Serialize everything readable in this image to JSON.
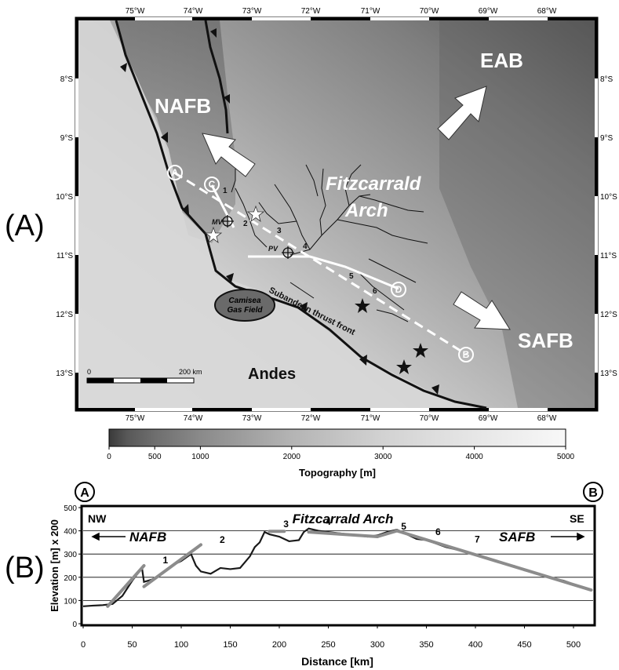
{
  "panel_labels": {
    "a": "(A)",
    "b": "(B)"
  },
  "map": {
    "lon_ticks_top": [
      "75°W",
      "74°W",
      "73°W",
      "72°W",
      "71°W",
      "70°W",
      "69°W",
      "68°W"
    ],
    "lon_ticks_bottom": [
      "75°W",
      "74°W",
      "73°W",
      "72°W",
      "71°W",
      "70°W",
      "69°W",
      "68°W"
    ],
    "lat_ticks_left": [
      "8°S",
      "9°S",
      "10°S",
      "11°S",
      "12°S",
      "13°S"
    ],
    "lat_ticks_right": [
      "8°S",
      "9°S",
      "10°S",
      "11°S",
      "12°S",
      "13°S"
    ],
    "regions": {
      "nafb": "NAFB",
      "eab": "EAB",
      "safb": "SAFB",
      "andes": "Andes",
      "arch_line1": "Fitzcarrald",
      "arch_line2": "Arch"
    },
    "field_line1": "Camisea",
    "field_line2": "Gas Field",
    "thrust_label": "Subandean thrust front",
    "profile_points": [
      "A",
      "B",
      "C",
      "D"
    ],
    "station_labels": [
      "MV",
      "PV"
    ],
    "site_numbers": [
      "1",
      "2",
      "3",
      "4",
      "5",
      "6"
    ],
    "scale_start": "0",
    "scale_end": "200 km",
    "colorbar": {
      "label": "Topography [m]",
      "ticks": [
        "0",
        "500",
        "1000",
        "2000",
        "3000",
        "4000",
        "5000"
      ],
      "min": 0,
      "max": 5000
    },
    "colors": {
      "thrust": "#111111",
      "profile": "#ffffff",
      "river": "#111111"
    }
  },
  "profile": {
    "corner_left": "A",
    "corner_right": "B",
    "nw": "NW",
    "se": "SE",
    "title": "Fitzcarrald Arch",
    "left_basin": "NAFB",
    "right_basin": "SAFB"
  },
  "chart_data": {
    "type": "line",
    "xlabel": "Distance [km]",
    "ylabel": "Elevation [m] x 200",
    "xlim": [
      0,
      520
    ],
    "ylim": [
      0,
      500
    ],
    "x_ticks": [
      "0",
      "50",
      "100",
      "150",
      "200",
      "250",
      "300",
      "350",
      "400",
      "450",
      "500"
    ],
    "y_ticks": [
      "0",
      "100",
      "200",
      "300",
      "400",
      "500"
    ],
    "grid": true,
    "series": [
      {
        "x": [
          0,
          10,
          20,
          30,
          40,
          50,
          60,
          62,
          70,
          80,
          90,
          100,
          110,
          115,
          120,
          130,
          140,
          150,
          160,
          170,
          175,
          180,
          185,
          190,
          200,
          210,
          220,
          225,
          230,
          240,
          250,
          260,
          270,
          280,
          290,
          300,
          310,
          320,
          330,
          340,
          350,
          360,
          370,
          380,
          390,
          400,
          410,
          420,
          430,
          440,
          450,
          460,
          470,
          480,
          490,
          500,
          510,
          518
        ],
        "y": [
          75,
          78,
          80,
          85,
          120,
          185,
          240,
          180,
          190,
          215,
          250,
          270,
          300,
          250,
          225,
          215,
          240,
          235,
          240,
          290,
          330,
          350,
          395,
          385,
          375,
          355,
          360,
          395,
          410,
          400,
          395,
          390,
          385,
          380,
          375,
          380,
          395,
          405,
          385,
          365,
          360,
          345,
          330,
          320,
          310,
          295,
          285,
          270,
          258,
          248,
          230,
          220,
          205,
          195,
          185,
          170,
          158,
          145
        ]
      },
      {
        "x": [
          25,
          62
        ],
        "y": [
          75,
          250
        ]
      },
      {
        "x": [
          62,
          120
        ],
        "y": [
          160,
          340
        ]
      },
      {
        "x": [
          190,
          205
        ],
        "y": [
          398,
          398
        ]
      },
      {
        "x": [
          230,
          300
        ],
        "y": [
          395,
          375
        ]
      },
      {
        "x": [
          300,
          320
        ],
        "y": [
          375,
          400
        ]
      },
      {
        "x": [
          320,
          518
        ],
        "y": [
          400,
          145
        ]
      }
    ],
    "annotations": [
      "1",
      "2",
      "3",
      "4",
      "5",
      "6",
      "7"
    ]
  }
}
